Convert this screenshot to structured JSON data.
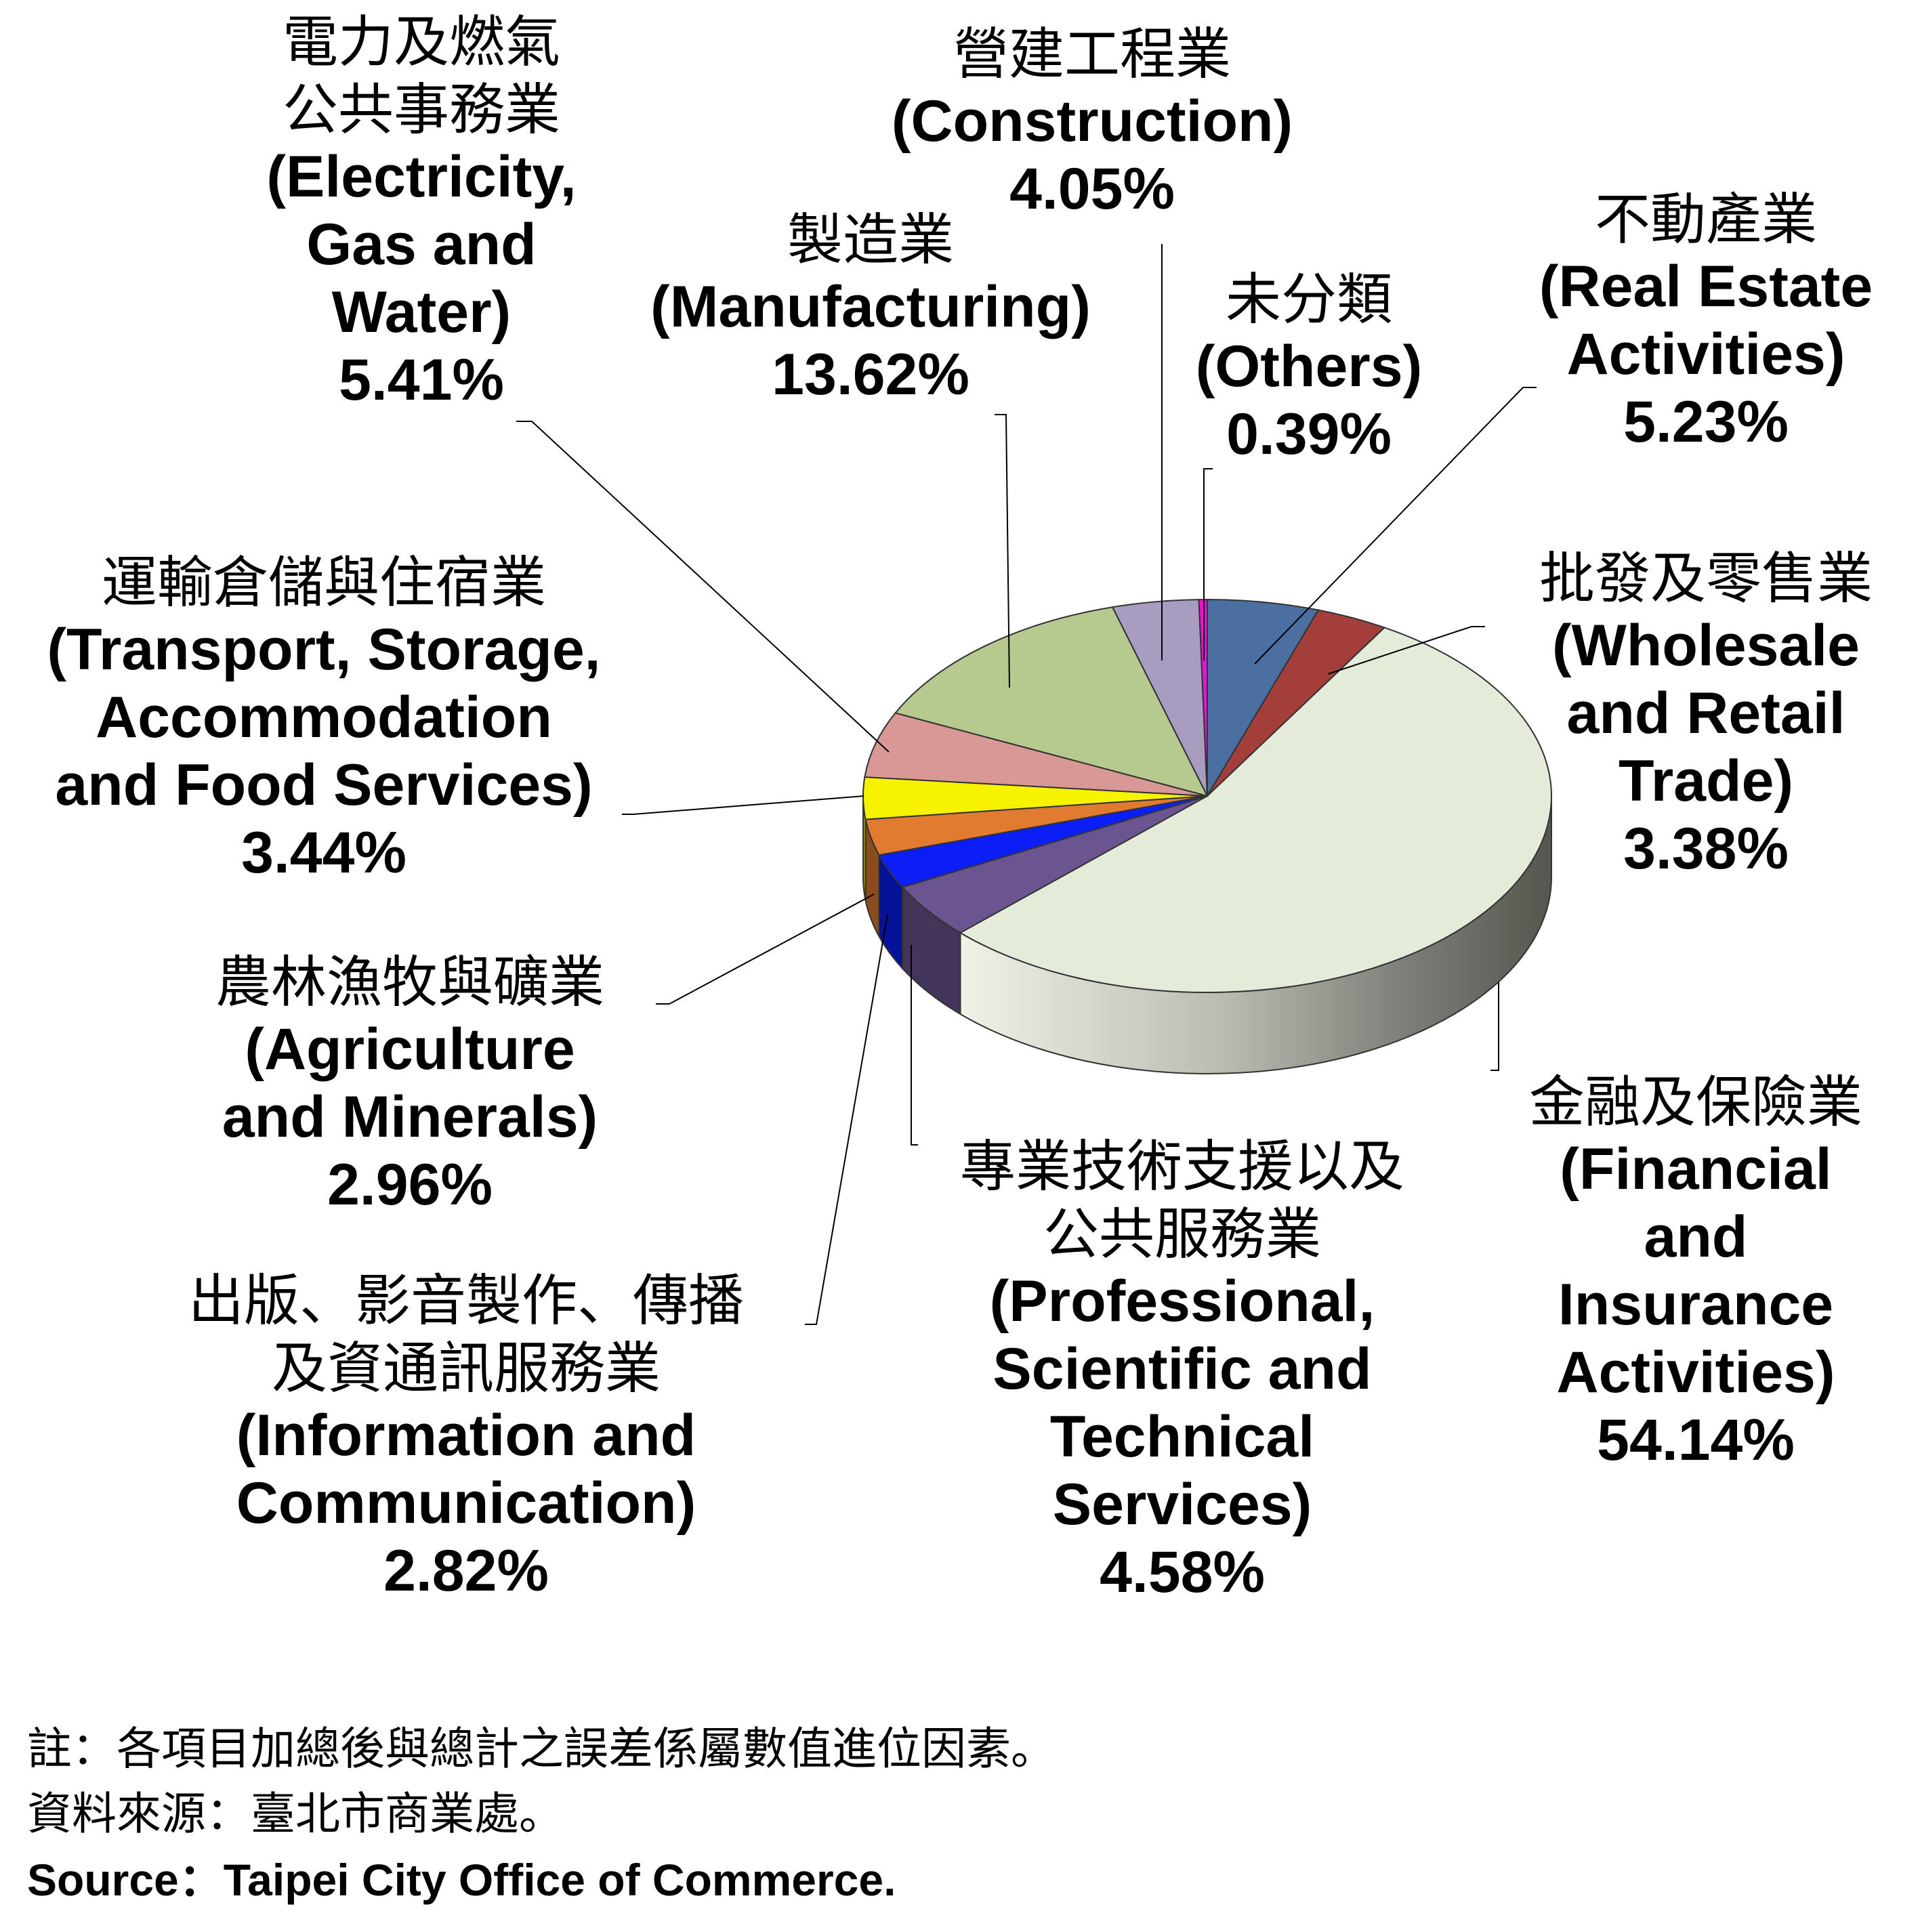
{
  "chart_data": {
    "type": "pie",
    "title": "",
    "style": "3d-tilted",
    "slices": [
      {
        "label_zh": [
          "不動產業"
        ],
        "label_en": [
          "(Real Estate",
          "Activities)"
        ],
        "percent_text": "5.23%",
        "value": 5.23,
        "color": "#4a6fa0",
        "key": "real-estate"
      },
      {
        "label_zh": [
          "批發及零售業"
        ],
        "label_en": [
          "(Wholesale",
          "and Retail",
          "Trade)"
        ],
        "percent_text": "3.38%",
        "value": 3.38,
        "color": "#a33e3b",
        "key": "wholesale-retail"
      },
      {
        "label_zh": [
          "金融及保險業"
        ],
        "label_en": [
          "(Financial",
          "and",
          "Insurance",
          "Activities)"
        ],
        "percent_text": "54.14%",
        "value": 54.14,
        "color": "#e4ebd8",
        "key": "finance-insurance"
      },
      {
        "label_zh": [
          "專業技術支援以及",
          "公共服務業"
        ],
        "label_en": [
          "(Professional,",
          "Scientific and",
          "Technical",
          "Services)"
        ],
        "percent_text": "4.58%",
        "value": 4.58,
        "color": "#6b5590",
        "key": "professional"
      },
      {
        "label_zh": [
          "出版、影音製作、傳播",
          "及資通訊服務業"
        ],
        "label_en": [
          "(Information and",
          "Communication)"
        ],
        "percent_text": "2.82%",
        "value": 2.82,
        "color": "#0a1ef5",
        "key": "info-comm"
      },
      {
        "label_zh": [
          "農林漁牧與礦業"
        ],
        "label_en": [
          "(Agriculture",
          "and Minerals)"
        ],
        "percent_text": "2.96%",
        "value": 2.96,
        "color": "#e07b30",
        "key": "agriculture"
      },
      {
        "label_zh": [
          "運輸倉儲與住宿業"
        ],
        "label_en": [
          "(Transport, Storage,",
          "Accommodation",
          "and Food Services)"
        ],
        "percent_text": "3.44%",
        "value": 3.44,
        "color": "#f7f300",
        "key": "transport"
      },
      {
        "label_zh": [
          "電力及燃氣",
          "公共事務業"
        ],
        "label_en": [
          "(Electricity,",
          "Gas and",
          "Water)"
        ],
        "percent_text": "5.41%",
        "value": 5.41,
        "color": "#d99795",
        "key": "electricity"
      },
      {
        "label_zh": [
          "製造業"
        ],
        "label_en": [
          "(Manufacturing)"
        ],
        "percent_text": "13.62%",
        "value": 13.62,
        "color": "#b6c98f",
        "key": "manufacturing"
      },
      {
        "label_zh": [
          "營建工程業"
        ],
        "label_en": [
          "(Construction)"
        ],
        "percent_text": "4.05%",
        "value": 4.05,
        "color": "#a89cc0",
        "key": "construction"
      },
      {
        "label_zh": [
          "未分類"
        ],
        "label_en": [
          "(Others)"
        ],
        "percent_text": "0.39%",
        "value": 0.39,
        "color": "#ee10d8",
        "key": "others"
      }
    ]
  },
  "notes": {
    "note_line": "註：各項目加總後與總計之誤差係屬數值進位因素。",
    "source_zh": "資料來源：臺北市商業處。",
    "source_en": "Source：Taipei City Office of Commerce."
  }
}
